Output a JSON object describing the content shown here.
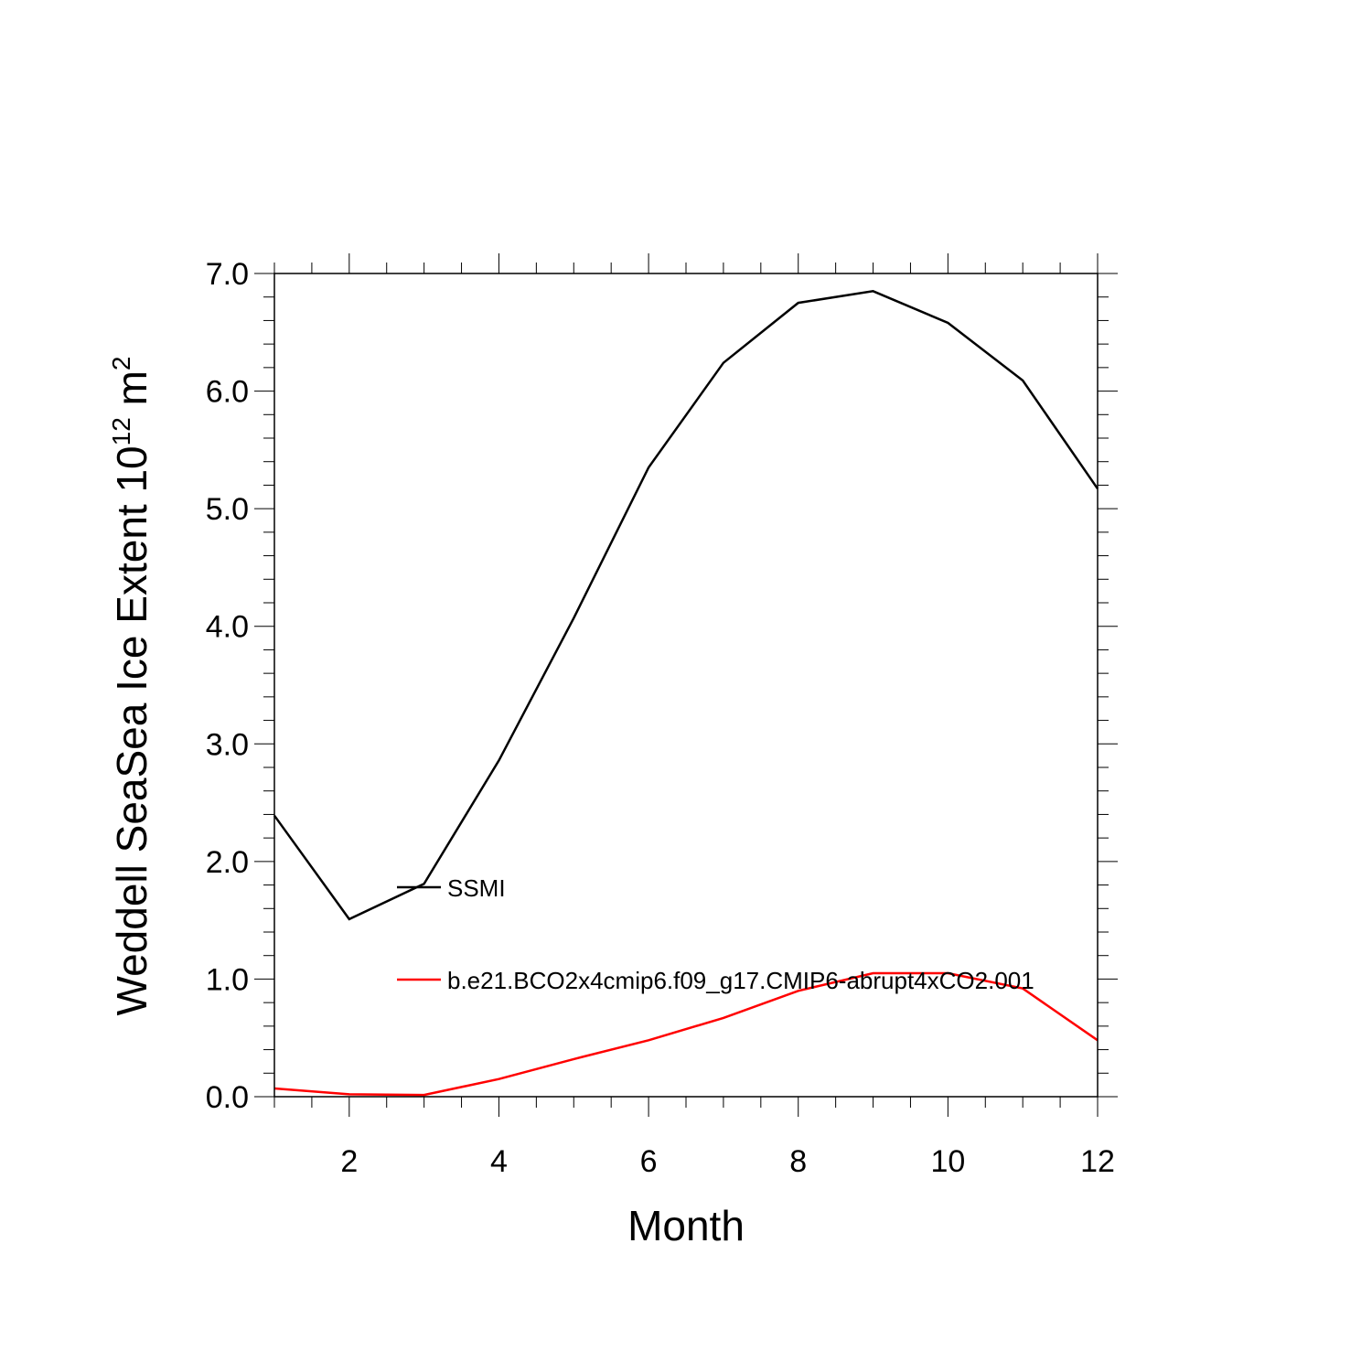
{
  "chart_data": {
    "type": "line",
    "title": "",
    "xlabel": "Month",
    "ylabel": {
      "prefix": "Weddell SeaSea Ice Extent 10",
      "exponent": "12",
      "unit": " m",
      "unit_exponent": "2"
    },
    "xlim": [
      1,
      12
    ],
    "ylim": [
      0,
      7
    ],
    "x_ticks": [
      2,
      4,
      6,
      8,
      10,
      12
    ],
    "x_tick_labels": [
      "2",
      "4",
      "6",
      "8",
      "10",
      "12"
    ],
    "y_ticks": [
      0,
      1,
      2,
      3,
      4,
      5,
      6,
      7
    ],
    "y_tick_labels": [
      "0.0",
      "1.0",
      "2.0",
      "3.0",
      "4.0",
      "5.0",
      "6.0",
      "7.0"
    ],
    "grid": false,
    "legend_position": "inside, lower-left",
    "x": [
      1,
      2,
      3,
      4,
      5,
      6,
      7,
      8,
      9,
      10,
      11,
      12
    ],
    "series": [
      {
        "name": "SSMI",
        "color": "#000000",
        "values": [
          2.39,
          1.51,
          1.81,
          2.86,
          4.07,
          5.35,
          6.24,
          6.75,
          6.85,
          6.58,
          6.09,
          5.17
        ]
      },
      {
        "name": "b.e21.BCO2x4cmip6.f09_g17.CMIP6-abrupt4xCO2.001",
        "color": "#ff0000",
        "values": [
          0.07,
          0.02,
          0.015,
          0.15,
          0.32,
          0.48,
          0.67,
          0.9,
          1.05,
          1.05,
          0.92,
          0.48
        ]
      }
    ]
  }
}
